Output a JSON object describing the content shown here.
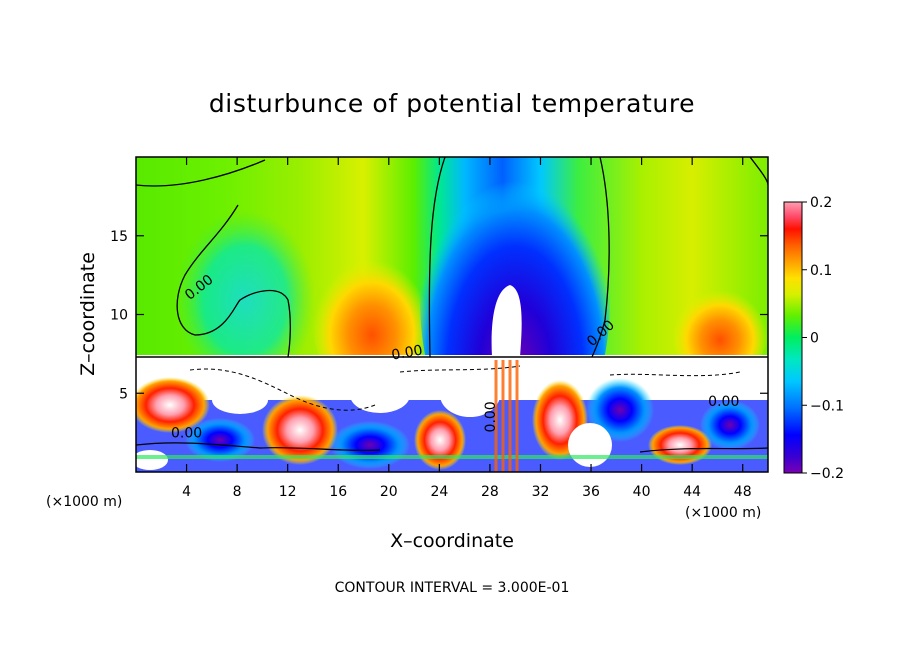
{
  "chart_data": {
    "type": "heatmap",
    "title": "disturbunce of potential temperature",
    "xlabel": "X–coordinate",
    "ylabel": "Z–coordinate",
    "x_unit_left": "(×1000 m)",
    "x_unit_right": "(×1000 m)",
    "xlim": [
      0,
      50
    ],
    "ylim": [
      0,
      20
    ],
    "x_ticks": [
      4,
      8,
      12,
      16,
      20,
      24,
      28,
      32,
      36,
      40,
      44,
      48
    ],
    "y_ticks": [
      5,
      10,
      15
    ],
    "colorbar": {
      "range": [
        -0.2,
        0.2
      ],
      "ticks": [
        {
          "value": 0.2,
          "label": "0.2"
        },
        {
          "value": 0.1,
          "label": "0.1"
        },
        {
          "value": 0.0,
          "label": "0"
        },
        {
          "value": -0.1,
          "label": "−0.1"
        },
        {
          "value": -0.2,
          "label": "−0.2"
        }
      ]
    },
    "contour_labels": [
      {
        "text": "0.00",
        "x": 5.2,
        "z": 11.5,
        "angle": -38
      },
      {
        "text": "0.00",
        "x": 21.5,
        "z": 7.3,
        "angle": -10
      },
      {
        "text": "0.00",
        "x": 37.0,
        "z": 8.6,
        "angle": -42
      },
      {
        "text": "0.00",
        "x": 4.0,
        "z": 2.2,
        "angle": 0
      },
      {
        "text": "0.00",
        "x": 28.4,
        "z": 3.5,
        "angle": -90
      },
      {
        "text": "0.00",
        "x": 46.5,
        "z": 4.2,
        "angle": 0
      }
    ],
    "footer": "CONTOUR INTERVAL = 3.000E-01"
  }
}
